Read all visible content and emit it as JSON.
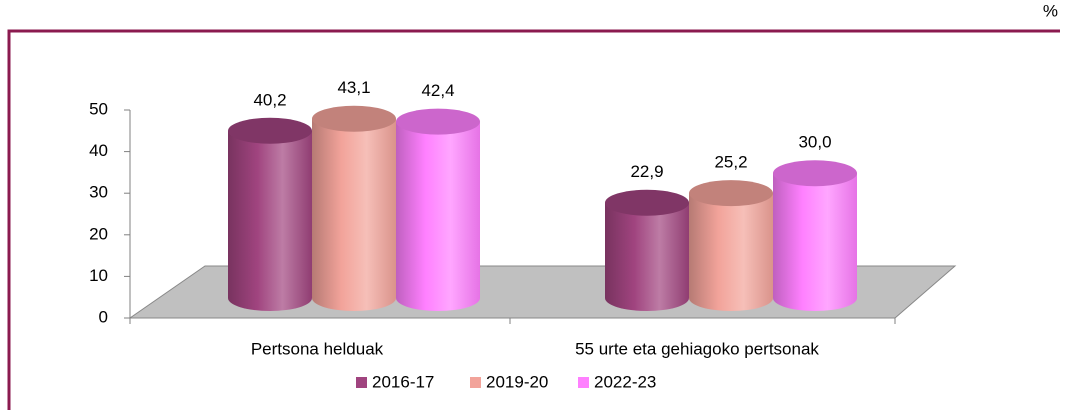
{
  "chart_data": {
    "type": "bar3d",
    "unit": "%",
    "categories": [
      "Pertsona helduak",
      "55 urte eta gehiagoko pertsonak"
    ],
    "series": [
      {
        "name": "2016-17",
        "color": "#a0447f",
        "values": [
          40.2,
          22.9
        ],
        "value_labels": [
          "40,2",
          "22,9"
        ]
      },
      {
        "name": "2019-20",
        "color": "#f2a39a",
        "values": [
          43.1,
          25.2
        ],
        "value_labels": [
          "43,1",
          "25,2"
        ]
      },
      {
        "name": "2022-23",
        "color": "#ff80ff",
        "values": [
          42.4,
          30.0
        ],
        "value_labels": [
          "42,4",
          "30,0"
        ]
      }
    ],
    "ylim": [
      0,
      50
    ],
    "yticks": [
      0,
      10,
      20,
      30,
      40,
      50
    ],
    "grid": false,
    "legend": "bottom"
  }
}
